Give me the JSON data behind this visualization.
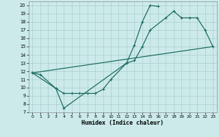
{
  "xlabel": "Humidex (Indice chaleur)",
  "bg_color": "#cceaea",
  "grid_color": "#aacccc",
  "line_color": "#1a6b5a",
  "xlim": [
    -0.5,
    23.5
  ],
  "ylim": [
    7,
    20.5
  ],
  "xticks": [
    0,
    1,
    2,
    3,
    4,
    5,
    6,
    7,
    8,
    9,
    10,
    11,
    12,
    13,
    14,
    15,
    16,
    17,
    18,
    19,
    20,
    21,
    22,
    23
  ],
  "yticks": [
    7,
    8,
    9,
    10,
    11,
    12,
    13,
    14,
    15,
    16,
    17,
    18,
    19,
    20
  ],
  "series1_x": [
    0,
    1,
    3,
    4,
    5,
    6,
    7,
    8,
    9,
    10,
    12,
    13,
    14,
    15,
    17,
    18,
    19,
    20,
    21,
    22,
    23
  ],
  "series1_y": [
    11.8,
    11.6,
    9.9,
    9.3,
    9.3,
    9.3,
    9.3,
    9.3,
    9.8,
    11.0,
    13.0,
    13.3,
    15.0,
    17.0,
    18.5,
    19.3,
    18.5,
    18.5,
    18.5,
    17.0,
    15.0
  ],
  "series2_x": [
    0,
    3,
    4,
    12,
    13,
    14,
    15,
    16
  ],
  "series2_y": [
    11.8,
    9.9,
    7.5,
    13.0,
    15.2,
    18.0,
    20.0,
    19.9
  ],
  "series3_x": [
    0,
    23
  ],
  "series3_y": [
    11.8,
    15.0
  ]
}
